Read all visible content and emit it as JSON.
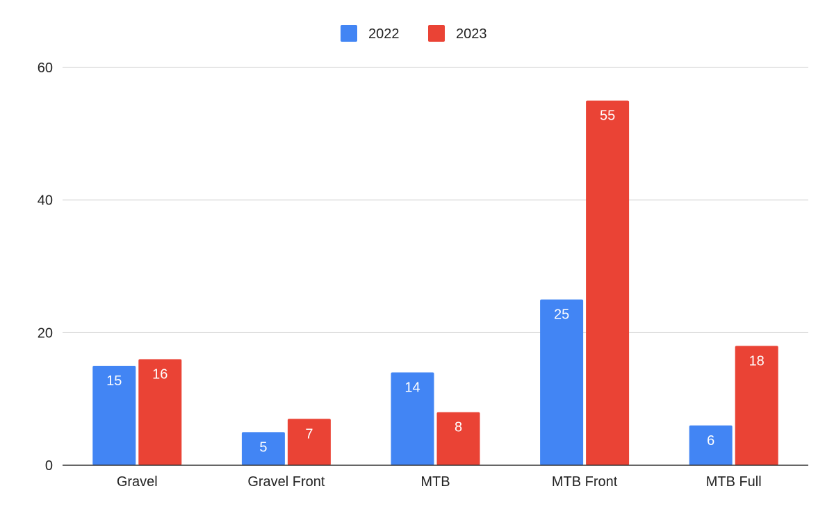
{
  "chart_data": {
    "type": "bar",
    "categories": [
      "Gravel",
      "Gravel Front",
      "MTB",
      "MTB Front",
      "MTB Full"
    ],
    "series": [
      {
        "name": "2022",
        "color": "#4285f4",
        "values": [
          15,
          5,
          14,
          25,
          6
        ]
      },
      {
        "name": "2023",
        "color": "#ea4335",
        "values": [
          16,
          7,
          8,
          55,
          18
        ]
      }
    ],
    "ylim": [
      0,
      60
    ],
    "yticks": [
      0,
      20,
      40,
      60
    ],
    "grid": true,
    "legend_position": "top-center",
    "data_labels": true
  }
}
